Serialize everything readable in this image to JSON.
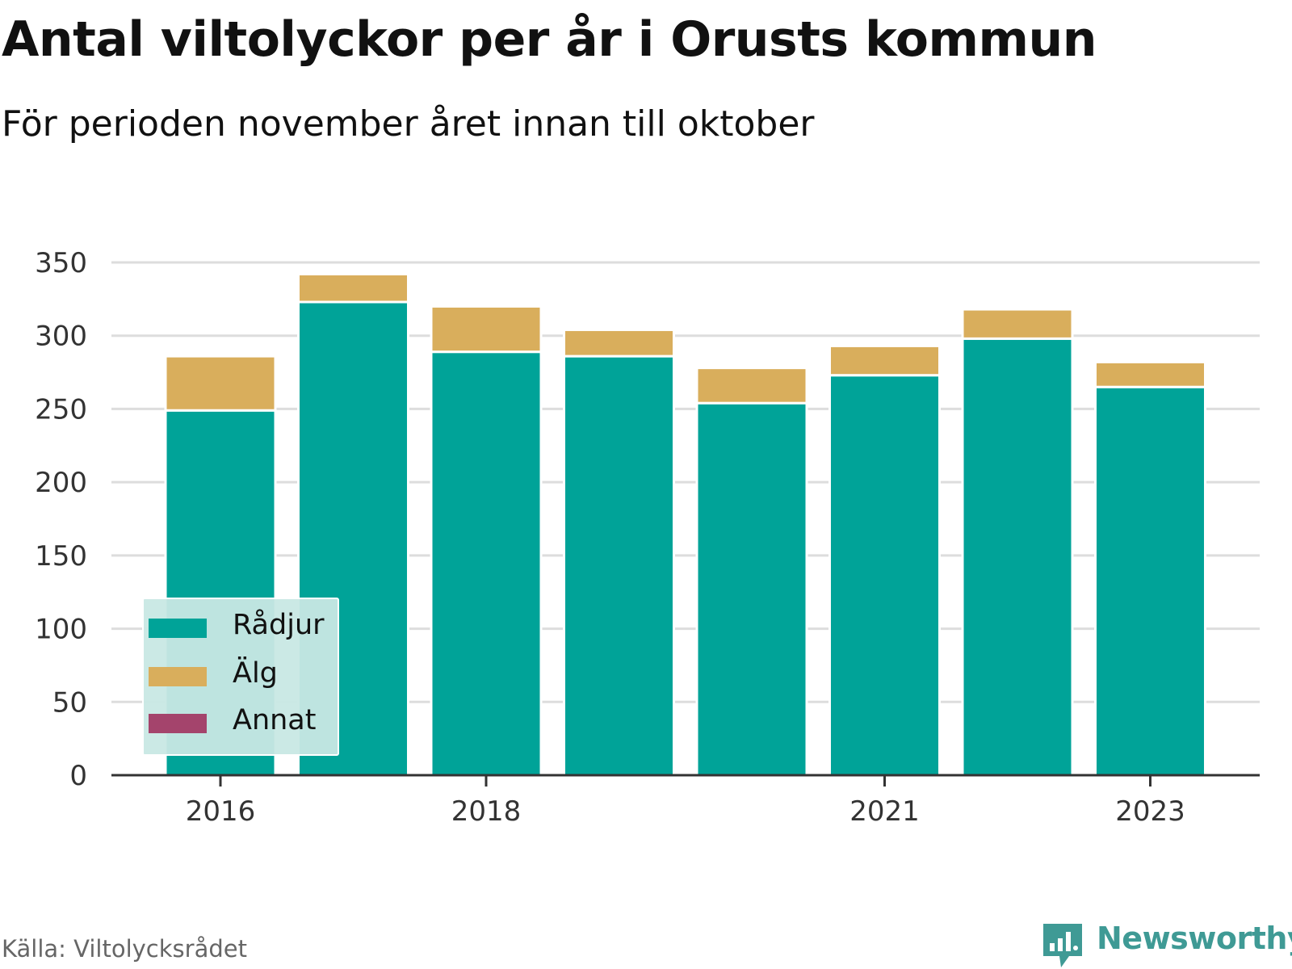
{
  "title": "Antal viltolyckor per år i Orusts kommun",
  "subtitle": "För perioden november året innan till oktober",
  "source": "Källa: Viltolycksrådet",
  "brand": "Newsworthy",
  "colors": {
    "radjur": "#00a398",
    "alg": "#d9ae5c",
    "annat": "#a4446c",
    "grid": "#dddddd",
    "axis": "#333333"
  },
  "chart_data": {
    "type": "bar",
    "stacked": true,
    "categories": [
      "2016",
      "2017",
      "2018",
      "2019",
      "2020",
      "2021",
      "2022",
      "2023"
    ],
    "x_tick_labels": [
      "2016",
      "2018",
      "2021",
      "2023"
    ],
    "series": [
      {
        "name": "Rådjur",
        "values": [
          249,
          323,
          289,
          286,
          254,
          273,
          298,
          265
        ]
      },
      {
        "name": "Älg",
        "values": [
          37,
          19,
          31,
          18,
          24,
          20,
          20,
          17
        ]
      },
      {
        "name": "Annat",
        "values": [
          0,
          0,
          0,
          0,
          0,
          0,
          0,
          0
        ]
      }
    ],
    "y_ticks": [
      0,
      50,
      100,
      150,
      200,
      250,
      300,
      350
    ],
    "ylim": [
      0,
      350
    ],
    "grid": true,
    "legend_position": "bottom-left"
  }
}
